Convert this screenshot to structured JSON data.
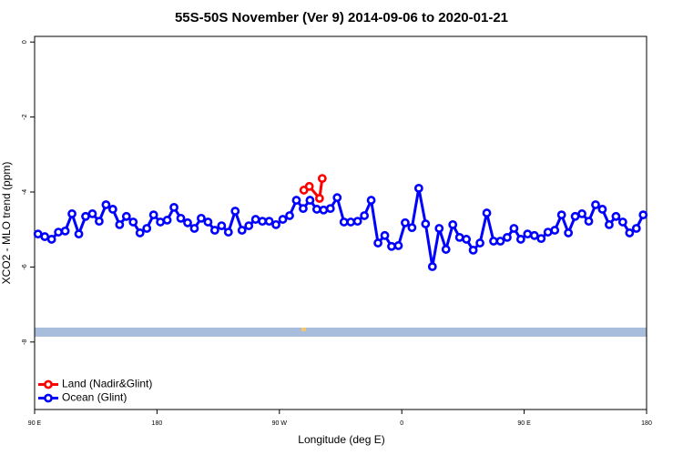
{
  "chart_data": {
    "type": "line",
    "title": "55S-50S November (Ver 9)   2014-09-06 to 2020-01-21",
    "xlabel": "Longitude (deg E)",
    "ylabel": "XCO2 - MLO trend (ppm)",
    "xlim": [
      90,
      540
    ],
    "ylim": [
      -9.8,
      0.15
    ],
    "xticks": [
      {
        "value": 90,
        "label": "90 E"
      },
      {
        "value": 180,
        "label": "180"
      },
      {
        "value": 270,
        "label": "90 W"
      },
      {
        "value": 360,
        "label": "0"
      },
      {
        "value": 450,
        "label": "90 E"
      },
      {
        "value": 540,
        "label": "180"
      }
    ],
    "yticks": [
      0,
      -2,
      -4,
      -6,
      -8
    ],
    "legend": "bottomleft",
    "series": [
      {
        "name": "Land (Nadir&Glint)",
        "color": "#ff0000",
        "x": [
          288,
          292,
          299.5,
          301.5
        ],
        "values": [
          -3.95,
          -3.85,
          -4.17,
          -3.64
        ]
      },
      {
        "name": "Ocean (Glint)",
        "color": "#0000ff",
        "x": [
          92.5,
          97.5,
          102.5,
          107.5,
          112.5,
          117.5,
          122.5,
          127.5,
          132.5,
          137.5,
          142.5,
          147.5,
          152.5,
          157.5,
          162.5,
          167.5,
          172.5,
          177.5,
          182.5,
          187.5,
          192.5,
          197.5,
          202.5,
          207.5,
          212.5,
          217.5,
          222.5,
          227.5,
          232.5,
          237.5,
          242.5,
          247.5,
          252.5,
          257.5,
          262.5,
          267.5,
          272.5,
          277.5,
          282.5,
          287.5,
          292.5,
          297.5,
          302.5,
          307.5,
          312.5,
          317.5,
          322.5,
          327.5,
          332.5,
          337.5,
          342.5,
          347.5,
          352.5,
          357.5,
          362.5,
          367.5,
          372.5,
          377.5,
          382.5,
          387.5,
          392.5,
          397.5,
          402.5,
          407.5,
          412.5,
          417.5,
          422.5,
          427.5,
          432.5,
          437.5,
          442.5,
          447.5,
          452.5,
          457.5,
          462.5,
          467.5,
          472.5,
          477.5,
          482.5,
          487.5,
          492.5,
          497.5,
          502.5,
          507.5,
          512.5,
          517.5,
          522.5,
          527.5,
          532.5,
          537.5
        ],
        "values": [
          -5.12,
          -5.19,
          -5.26,
          -5.07,
          -5.04,
          -4.58,
          -5.12,
          -4.65,
          -4.58,
          -4.78,
          -4.34,
          -4.46,
          -4.87,
          -4.65,
          -4.8,
          -5.09,
          -4.97,
          -4.61,
          -4.8,
          -4.75,
          -4.41,
          -4.7,
          -4.82,
          -4.97,
          -4.7,
          -4.8,
          -5.02,
          -4.9,
          -5.07,
          -4.51,
          -5.02,
          -4.9,
          -4.73,
          -4.78,
          -4.78,
          -4.87,
          -4.73,
          -4.63,
          -4.22,
          -4.44,
          -4.22,
          -4.46,
          -4.48,
          -4.44,
          -4.15,
          -4.8,
          -4.8,
          -4.78,
          -4.63,
          -4.22,
          -5.36,
          -5.16,
          -5.45,
          -5.43,
          -4.82,
          -4.95,
          -3.9,
          -4.85,
          -5.99,
          -4.97,
          -5.53,
          -4.87,
          -5.21,
          -5.26,
          -5.55,
          -5.36,
          -4.56,
          -5.31,
          -5.31,
          -5.21,
          -4.97,
          -5.26,
          -5.12,
          -5.16,
          -5.24,
          -5.07,
          -5.02,
          -4.61,
          -5.09,
          -4.65,
          -4.58,
          -4.78,
          -4.34,
          -4.46,
          -4.87,
          -4.65,
          -4.8,
          -5.09,
          -4.97,
          -4.61
        ]
      }
    ]
  }
}
